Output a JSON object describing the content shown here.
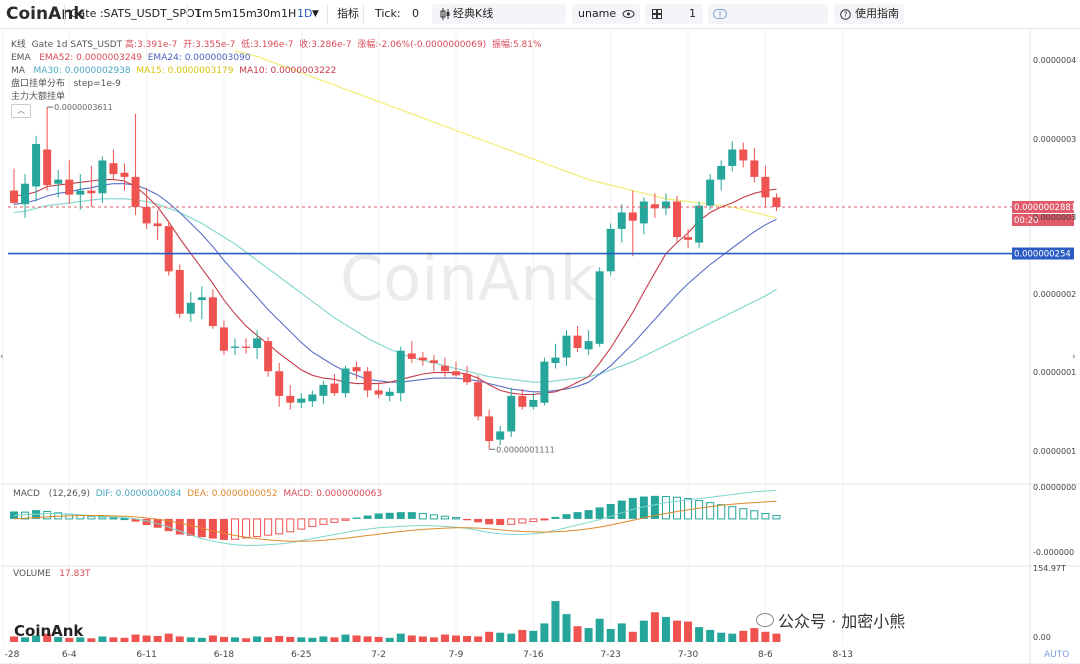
{
  "toolbar": {
    "logo": "CoinAnk",
    "symbol": "Gate :SATS_USDT_SPOT",
    "intervals": [
      "1m",
      "5m",
      "15m",
      "30m",
      "1H",
      "1D"
    ],
    "active_interval": "1D",
    "indicators_label": "指标",
    "tick_label": "Tick:",
    "tick_value": "0",
    "kline_style": "经典K线",
    "user": "uname",
    "layout_count": "1",
    "guide_label": "使用指南"
  },
  "overlay": {
    "kline_label": "K线",
    "kline_info": "Gate 1d SATS_USDT",
    "high": "高:3.391e-7",
    "open": "开:3.355e-7",
    "low": "低:3.196e-7",
    "close": "收:3.286e-7",
    "change": "涨幅:-2.06%(-0.0000000069)",
    "amplitude": "振幅:5.81%",
    "ema_label": "EMA",
    "ema52": "EMA52: 0.0000003249",
    "ema24": "EMA24: 0.0000003090",
    "ma_label": "MA",
    "ma30": "MA30: 0.0000002938",
    "ma15": "MA15: 0.0000003179",
    "ma10": "MA10: 0.0000003222",
    "orderbook": "盘口挂单分布",
    "step": "step=1e-9",
    "main_orders": "主力大额挂单"
  },
  "price_labels": {
    "current": "0.0000002881",
    "countdown": "00:20",
    "line": "0.000000254",
    "peak_marker": "0.0000003611",
    "trough_marker": "0.0000001111"
  },
  "macd_header": {
    "label": "MACD",
    "params": "(12,26,9)",
    "dif": "DIF: 0.0000000084",
    "dea": "DEA: 0.0000000052",
    "macd": "MACD: 0.0000000063"
  },
  "volume_header": {
    "label": "VOLUME",
    "value": "17.83T"
  },
  "watermark": {
    "main": "CoinAnk",
    "bottom_left": "CoinAnk",
    "wechat": "公众号 · 加密小熊"
  },
  "auto_label": "AUTO",
  "colors": {
    "up": "#26a69a",
    "down": "#ef5350",
    "ma10": "#c43c4b",
    "ma15": "#5b6ec7",
    "ma30": "#7fd6cc",
    "ema": "#f2ee7c",
    "line": "#2a5cc4"
  },
  "chart_data": {
    "type": "candlestick",
    "x_tick_labels": [
      "-28",
      "6-4",
      "6-11",
      "6-18",
      "6-25",
      "7-2",
      "7-9",
      "7-16",
      "7-23",
      "7-30",
      "8-6",
      "8-13"
    ],
    "y_tick_labels": [
      "0.0000004",
      "0.0000003",
      "0.0000003",
      "0.0000002",
      "0.0000001",
      "0.0000001"
    ],
    "ylim": [
      9e-08,
      4.1e-07
    ],
    "candles": [
      {
        "o": 3e-07,
        "h": 3.16e-07,
        "l": 2.9e-07,
        "c": 2.91e-07
      },
      {
        "o": 2.9e-07,
        "h": 3.12e-07,
        "l": 2.8e-07,
        "c": 3.05e-07
      },
      {
        "o": 3.03e-07,
        "h": 3.4e-07,
        "l": 2.92e-07,
        "c": 3.34e-07
      },
      {
        "o": 3.3e-07,
        "h": 3.61e-07,
        "l": 3e-07,
        "c": 3.04e-07
      },
      {
        "o": 3.05e-07,
        "h": 3.15e-07,
        "l": 2.95e-07,
        "c": 3.08e-07
      },
      {
        "o": 3.08e-07,
        "h": 3.22e-07,
        "l": 2.9e-07,
        "c": 2.97e-07
      },
      {
        "o": 2.97e-07,
        "h": 3.12e-07,
        "l": 2.86e-07,
        "c": 3e-07
      },
      {
        "o": 3e-07,
        "h": 3.18e-07,
        "l": 2.88e-07,
        "c": 2.98e-07
      },
      {
        "o": 2.98e-07,
        "h": 3.25e-07,
        "l": 2.91e-07,
        "c": 3.22e-07
      },
      {
        "o": 3.2e-07,
        "h": 3.3e-07,
        "l": 3.08e-07,
        "c": 3.12e-07
      },
      {
        "o": 3.13e-07,
        "h": 3.2e-07,
        "l": 3e-07,
        "c": 3.1e-07
      },
      {
        "o": 3.1e-07,
        "h": 3.56e-07,
        "l": 2.82e-07,
        "c": 2.88e-07
      },
      {
        "o": 2.88e-07,
        "h": 3.02e-07,
        "l": 2.72e-07,
        "c": 2.76e-07
      },
      {
        "o": 2.76e-07,
        "h": 2.86e-07,
        "l": 2.64e-07,
        "c": 2.74e-07
      },
      {
        "o": 2.74e-07,
        "h": 2.78e-07,
        "l": 2.38e-07,
        "c": 2.41e-07
      },
      {
        "o": 2.42e-07,
        "h": 2.46e-07,
        "l": 2.07e-07,
        "c": 2.1e-07
      },
      {
        "o": 2.1e-07,
        "h": 2.26e-07,
        "l": 2.04e-07,
        "c": 2.18e-07
      },
      {
        "o": 2.2e-07,
        "h": 2.3e-07,
        "l": 2.06e-07,
        "c": 2.22e-07
      },
      {
        "o": 2.22e-07,
        "h": 2.28e-07,
        "l": 1.99e-07,
        "c": 2.01e-07
      },
      {
        "o": 2e-07,
        "h": 2.05e-07,
        "l": 1.8e-07,
        "c": 1.83e-07
      },
      {
        "o": 1.85e-07,
        "h": 1.92e-07,
        "l": 1.8e-07,
        "c": 1.86e-07
      },
      {
        "o": 1.86e-07,
        "h": 1.92e-07,
        "l": 1.81e-07,
        "c": 1.85e-07
      },
      {
        "o": 1.85e-07,
        "h": 1.98e-07,
        "l": 1.77e-07,
        "c": 1.92e-07
      },
      {
        "o": 1.9e-07,
        "h": 1.93e-07,
        "l": 1.64e-07,
        "c": 1.68e-07
      },
      {
        "o": 1.68e-07,
        "h": 1.74e-07,
        "l": 1.42e-07,
        "c": 1.5e-07
      },
      {
        "o": 1.5e-07,
        "h": 1.58e-07,
        "l": 1.4e-07,
        "c": 1.45e-07
      },
      {
        "o": 1.45e-07,
        "h": 1.52e-07,
        "l": 1.41e-07,
        "c": 1.48e-07
      },
      {
        "o": 1.46e-07,
        "h": 1.54e-07,
        "l": 1.42e-07,
        "c": 1.51e-07
      },
      {
        "o": 1.5e-07,
        "h": 1.61e-07,
        "l": 1.44e-07,
        "c": 1.58e-07
      },
      {
        "o": 1.59e-07,
        "h": 1.66e-07,
        "l": 1.5e-07,
        "c": 1.52e-07
      },
      {
        "o": 1.52e-07,
        "h": 1.72e-07,
        "l": 1.49e-07,
        "c": 1.7e-07
      },
      {
        "o": 1.71e-07,
        "h": 1.75e-07,
        "l": 1.62e-07,
        "c": 1.68e-07
      },
      {
        "o": 1.68e-07,
        "h": 1.71e-07,
        "l": 1.49e-07,
        "c": 1.54e-07
      },
      {
        "o": 1.54e-07,
        "h": 1.6e-07,
        "l": 1.48e-07,
        "c": 1.51e-07
      },
      {
        "o": 1.5e-07,
        "h": 1.56e-07,
        "l": 1.46e-07,
        "c": 1.53e-07
      },
      {
        "o": 1.52e-07,
        "h": 1.86e-07,
        "l": 1.46e-07,
        "c": 1.83e-07
      },
      {
        "o": 1.81e-07,
        "h": 1.9e-07,
        "l": 1.74e-07,
        "c": 1.77e-07
      },
      {
        "o": 1.78e-07,
        "h": 1.82e-07,
        "l": 1.72e-07,
        "c": 1.76e-07
      },
      {
        "o": 1.76e-07,
        "h": 1.8e-07,
        "l": 1.68e-07,
        "c": 1.74e-07
      },
      {
        "o": 1.72e-07,
        "h": 1.78e-07,
        "l": 1.64e-07,
        "c": 1.68e-07
      },
      {
        "o": 1.68e-07,
        "h": 1.75e-07,
        "l": 1.64e-07,
        "c": 1.65e-07
      },
      {
        "o": 1.66e-07,
        "h": 1.72e-07,
        "l": 1.58e-07,
        "c": 1.6e-07
      },
      {
        "o": 1.6e-07,
        "h": 1.65e-07,
        "l": 1.32e-07,
        "c": 1.35e-07
      },
      {
        "o": 1.35e-07,
        "h": 1.4e-07,
        "l": 1.11e-07,
        "c": 1.17e-07
      },
      {
        "o": 1.18e-07,
        "h": 1.28e-07,
        "l": 1.14e-07,
        "c": 1.24e-07
      },
      {
        "o": 1.24e-07,
        "h": 1.56e-07,
        "l": 1.2e-07,
        "c": 1.5e-07
      },
      {
        "o": 1.5e-07,
        "h": 1.55e-07,
        "l": 1.4e-07,
        "c": 1.42e-07
      },
      {
        "o": 1.42e-07,
        "h": 1.52e-07,
        "l": 1.4e-07,
        "c": 1.47e-07
      },
      {
        "o": 1.45e-07,
        "h": 1.78e-07,
        "l": 1.43e-07,
        "c": 1.75e-07
      },
      {
        "o": 1.74e-07,
        "h": 1.88e-07,
        "l": 1.7e-07,
        "c": 1.78e-07
      },
      {
        "o": 1.78e-07,
        "h": 1.98e-07,
        "l": 1.72e-07,
        "c": 1.94e-07
      },
      {
        "o": 1.94e-07,
        "h": 2.01e-07,
        "l": 1.82e-07,
        "c": 1.85e-07
      },
      {
        "o": 1.84e-07,
        "h": 1.98e-07,
        "l": 1.8e-07,
        "c": 1.9e-07
      },
      {
        "o": 1.88e-07,
        "h": 2.44e-07,
        "l": 1.86e-07,
        "c": 2.41e-07
      },
      {
        "o": 2.41e-07,
        "h": 2.76e-07,
        "l": 2.38e-07,
        "c": 2.72e-07
      },
      {
        "o": 2.72e-07,
        "h": 2.9e-07,
        "l": 2.62e-07,
        "c": 2.84e-07
      },
      {
        "o": 2.84e-07,
        "h": 3e-07,
        "l": 2.52e-07,
        "c": 2.78e-07
      },
      {
        "o": 2.76e-07,
        "h": 2.95e-07,
        "l": 2.68e-07,
        "c": 2.92e-07
      },
      {
        "o": 2.9e-07,
        "h": 2.98e-07,
        "l": 2.8e-07,
        "c": 2.87e-07
      },
      {
        "o": 2.87e-07,
        "h": 2.98e-07,
        "l": 2.82e-07,
        "c": 2.92e-07
      },
      {
        "o": 2.92e-07,
        "h": 2.96e-07,
        "l": 2.62e-07,
        "c": 2.66e-07
      },
      {
        "o": 2.66e-07,
        "h": 2.72e-07,
        "l": 2.58e-07,
        "c": 2.64e-07
      },
      {
        "o": 2.62e-07,
        "h": 2.92e-07,
        "l": 2.58e-07,
        "c": 2.89e-07
      },
      {
        "o": 2.89e-07,
        "h": 3.12e-07,
        "l": 2.86e-07,
        "c": 3.08e-07
      },
      {
        "o": 3.08e-07,
        "h": 3.22e-07,
        "l": 3e-07,
        "c": 3.18e-07
      },
      {
        "o": 3.18e-07,
        "h": 3.36e-07,
        "l": 3.14e-07,
        "c": 3.3e-07
      },
      {
        "o": 3.3e-07,
        "h": 3.35e-07,
        "l": 3.17e-07,
        "c": 3.22e-07
      },
      {
        "o": 3.22e-07,
        "h": 3.31e-07,
        "l": 3.06e-07,
        "c": 3.1e-07
      },
      {
        "o": 3.1e-07,
        "h": 3.18e-07,
        "l": 2.88e-07,
        "c": 2.95e-07
      },
      {
        "o": 2.95e-07,
        "h": 2.98e-07,
        "l": 2.85e-07,
        "c": 2.88e-07
      }
    ],
    "ma10": [
      2.96e-07,
      2.97e-07,
      2.99e-07,
      3.03e-07,
      3.04e-07,
      3.05e-07,
      3.06e-07,
      3.07e-07,
      3.08e-07,
      3.08e-07,
      3.07e-07,
      3.03e-07,
      2.96e-07,
      2.88e-07,
      2.77e-07,
      2.65e-07,
      2.54e-07,
      2.43e-07,
      2.32e-07,
      2.2e-07,
      2.1e-07,
      2.01e-07,
      1.94e-07,
      1.88e-07,
      1.81e-07,
      1.75e-07,
      1.69e-07,
      1.65e-07,
      1.63e-07,
      1.62e-07,
      1.6e-07,
      1.59e-07,
      1.59e-07,
      1.59e-07,
      1.6e-07,
      1.62e-07,
      1.64e-07,
      1.66e-07,
      1.67e-07,
      1.67e-07,
      1.67e-07,
      1.66e-07,
      1.63e-07,
      1.58e-07,
      1.54e-07,
      1.52e-07,
      1.51e-07,
      1.51e-07,
      1.52e-07,
      1.53e-07,
      1.56e-07,
      1.6e-07,
      1.64e-07,
      1.74e-07,
      1.85e-07,
      1.98e-07,
      2.11e-07,
      2.26e-07,
      2.4e-07,
      2.54e-07,
      2.62e-07,
      2.69e-07,
      2.78e-07,
      2.84e-07,
      2.88e-07,
      2.91e-07,
      2.95e-07,
      2.98e-07,
      3e-07,
      3.01e-07
    ],
    "ma15": [
      2.9e-07,
      2.91e-07,
      2.93e-07,
      2.96e-07,
      2.98e-07,
      2.99e-07,
      3.01e-07,
      3.02e-07,
      3.04e-07,
      3.05e-07,
      3.05e-07,
      3.04e-07,
      3.01e-07,
      2.97e-07,
      2.91e-07,
      2.84e-07,
      2.76e-07,
      2.68e-07,
      2.59e-07,
      2.49e-07,
      2.4e-07,
      2.31e-07,
      2.22e-07,
      2.13e-07,
      2.05e-07,
      1.97e-07,
      1.89e-07,
      1.82e-07,
      1.77e-07,
      1.72e-07,
      1.68e-07,
      1.65e-07,
      1.62e-07,
      1.61e-07,
      1.6e-07,
      1.6e-07,
      1.61e-07,
      1.62e-07,
      1.63e-07,
      1.63e-07,
      1.63e-07,
      1.62e-07,
      1.61e-07,
      1.59e-07,
      1.57e-07,
      1.55e-07,
      1.54e-07,
      1.53e-07,
      1.53e-07,
      1.54e-07,
      1.55e-07,
      1.57e-07,
      1.6e-07,
      1.66e-07,
      1.72e-07,
      1.8e-07,
      1.88e-07,
      1.97e-07,
      2.06e-07,
      2.15e-07,
      2.24e-07,
      2.32e-07,
      2.39e-07,
      2.46e-07,
      2.52e-07,
      2.58e-07,
      2.64e-07,
      2.7e-07,
      2.75e-07,
      2.79e-07
    ],
    "ma30": [
      2.84e-07,
      2.85e-07,
      2.87e-07,
      2.89e-07,
      2.9e-07,
      2.91e-07,
      2.92e-07,
      2.93e-07,
      2.94e-07,
      2.94e-07,
      2.94e-07,
      2.93e-07,
      2.92e-07,
      2.9e-07,
      2.87e-07,
      2.84e-07,
      2.8e-07,
      2.76e-07,
      2.71e-07,
      2.66e-07,
      2.61e-07,
      2.55e-07,
      2.49e-07,
      2.43e-07,
      2.37e-07,
      2.31e-07,
      2.25e-07,
      2.19e-07,
      2.13e-07,
      2.07e-07,
      2.02e-07,
      1.97e-07,
      1.92e-07,
      1.88e-07,
      1.84e-07,
      1.81e-07,
      1.78e-07,
      1.76e-07,
      1.74e-07,
      1.72e-07,
      1.7e-07,
      1.68e-07,
      1.66e-07,
      1.64e-07,
      1.63e-07,
      1.62e-07,
      1.61e-07,
      1.6e-07,
      1.6e-07,
      1.61e-07,
      1.62e-07,
      1.63e-07,
      1.64e-07,
      1.66e-07,
      1.69e-07,
      1.72e-07,
      1.75e-07,
      1.79e-07,
      1.83e-07,
      1.87e-07,
      1.91e-07,
      1.95e-07,
      1.99e-07,
      2.03e-07,
      2.07e-07,
      2.11e-07,
      2.15e-07,
      2.19e-07,
      2.23e-07,
      2.28e-07
    ],
    "ema_x_start": 20,
    "ema": [
      4.02e-07,
      4e-07,
      3.98e-07,
      3.95e-07,
      3.92e-07,
      3.89e-07,
      3.86e-07,
      3.83e-07,
      3.8e-07,
      3.77e-07,
      3.74e-07,
      3.71e-07,
      3.68e-07,
      3.65e-07,
      3.62e-07,
      3.59e-07,
      3.56e-07,
      3.53e-07,
      3.5e-07,
      3.47e-07,
      3.44e-07,
      3.41e-07,
      3.38e-07,
      3.35e-07,
      3.32e-07,
      3.29e-07,
      3.26e-07,
      3.23e-07,
      3.2e-07,
      3.17e-07,
      3.14e-07,
      3.11e-07,
      3.08e-07,
      3.06e-07,
      3.04e-07,
      3.02e-07,
      3e-07,
      2.98e-07,
      2.96e-07,
      2.94e-07,
      2.93e-07,
      2.92e-07,
      2.91e-07,
      2.9e-07,
      2.89e-07,
      2.88e-07,
      2.86e-07,
      2.84e-07,
      2.82e-07,
      2.8e-07
    ],
    "horizontal_line": 2.54e-07,
    "macd_ylim": [
      -1.3e-08,
      1e-08
    ],
    "macd_y_tick_labels": [
      "0.0000000",
      "-0.000000"
    ],
    "macd_hist": [
      2.2e-09,
      2e-09,
      2.6e-09,
      2.2e-09,
      1.8e-09,
      1.4e-09,
      1e-09,
      8e-10,
      6e-10,
      3e-10,
      1e-10,
      -8e-10,
      -1.8e-09,
      -2.6e-09,
      -3.6e-09,
      -4.6e-09,
      -5e-09,
      -5.4e-09,
      -5.8e-09,
      -6.2e-09,
      -6e-09,
      -5.6e-09,
      -5.2e-09,
      -4.8e-09,
      -4.4e-09,
      -3.8e-09,
      -3e-09,
      -2.2e-09,
      -1.6e-09,
      -1e-09,
      -4e-10,
      4e-10,
      1e-09,
      1.6e-09,
      1.8e-09,
      2e-09,
      2e-09,
      1.6e-09,
      1.2e-09,
      8e-10,
      4e-10,
      -4e-10,
      -1e-09,
      -1.6e-09,
      -1.8e-09,
      -1.6e-09,
      -1.2e-09,
      -8e-10,
      -2e-10,
      6e-10,
      1.4e-09,
      2e-09,
      2.6e-09,
      3.4e-09,
      4.4e-09,
      5.4e-09,
      6.2e-09,
      6.6e-09,
      6.8e-09,
      6.6e-09,
      6.4e-09,
      6e-09,
      5.4e-09,
      4.8e-09,
      4.2e-09,
      3.6e-09,
      3e-09,
      2.4e-09,
      1.6e-09,
      1e-09
    ],
    "dif": [
      1e-09,
      1.2e-09,
      1.4e-09,
      1.6e-09,
      1.6e-09,
      1.4e-09,
      1.2e-09,
      1e-09,
      8e-10,
      6e-10,
      4e-10,
      0.0,
      -6e-10,
      -1.4e-09,
      -2.4e-09,
      -3.6e-09,
      -4.8e-09,
      -5.8e-09,
      -6.6e-09,
      -7.2e-09,
      -7.6e-09,
      -7.8e-09,
      -7.8e-09,
      -7.6e-09,
      -7.4e-09,
      -7e-09,
      -6.4e-09,
      -5.8e-09,
      -5.2e-09,
      -4.6e-09,
      -4e-09,
      -3.4e-09,
      -3e-09,
      -2.6e-09,
      -2.4e-09,
      -2.2e-09,
      -2e-09,
      -2e-09,
      -2e-09,
      -2.2e-09,
      -2.4e-09,
      -2.8e-09,
      -3.4e-09,
      -4e-09,
      -4.4e-09,
      -4.6e-09,
      -4.6e-09,
      -4.4e-09,
      -4e-09,
      -3.4e-09,
      -2.6e-09,
      -1.8e-09,
      -1e-09,
      -2e-10,
      8e-10,
      1.8e-09,
      2.8e-09,
      3.6e-09,
      4.2e-09,
      4.8e-09,
      5.2e-09,
      5.6e-09,
      6e-09,
      6.4e-09,
      6.8e-09,
      7.2e-09,
      7.6e-09,
      8e-09,
      8.2e-09,
      8.4e-09
    ],
    "dea": [
      0.0,
      2e-10,
      4e-10,
      6e-10,
      8e-10,
      9e-10,
      1e-09,
      1e-09,
      1e-09,
      9e-10,
      8e-10,
      6e-10,
      3e-10,
      -1e-10,
      -6e-10,
      -1.2e-09,
      -1.9e-09,
      -2.7e-09,
      -3.5e-09,
      -4.2e-09,
      -4.9e-09,
      -5.4e-09,
      -5.8e-09,
      -6.2e-09,
      -6.4e-09,
      -6.6e-09,
      -6.6e-09,
      -6.5e-09,
      -6.3e-09,
      -6e-09,
      -5.7e-09,
      -5.3e-09,
      -4.9e-09,
      -4.5e-09,
      -4.1e-09,
      -3.7e-09,
      -3.4e-09,
      -3.1e-09,
      -2.9e-09,
      -2.7e-09,
      -2.6e-09,
      -2.6e-09,
      -2.7e-09,
      -2.9e-09,
      -3.2e-09,
      -3.5e-09,
      -3.7e-09,
      -3.8e-09,
      -3.9e-09,
      -3.8e-09,
      -3.6e-09,
      -3.3e-09,
      -2.9e-09,
      -2.4e-09,
      -1.8e-09,
      -1.1e-09,
      -4e-10,
      3e-10,
      1e-09,
      1.6e-09,
      2.2e-09,
      2.7e-09,
      3.2e-09,
      3.6e-09,
      4e-09,
      4.3e-09,
      4.6e-09,
      4.8e-09,
      5e-09,
      5.2e-09
    ],
    "volume_ylim": [
      0,
      154.97
    ],
    "volume_y_tick_labels": [
      "154.97T",
      "0.00"
    ],
    "volume": [
      12,
      10,
      14,
      18,
      11,
      9,
      10,
      8,
      12,
      10,
      9,
      16,
      14,
      13,
      18,
      12,
      10,
      9,
      14,
      11,
      10,
      8,
      12,
      10,
      13,
      11,
      10,
      9,
      12,
      10,
      16,
      14,
      12,
      11,
      9,
      18,
      14,
      12,
      10,
      16,
      14,
      13,
      12,
      22,
      20,
      18,
      26,
      24,
      40,
      88,
      60,
      34,
      30,
      50,
      28,
      40,
      22,
      46,
      64,
      54,
      46,
      44,
      32,
      26,
      20,
      18,
      24,
      30,
      22,
      17.83
    ]
  }
}
